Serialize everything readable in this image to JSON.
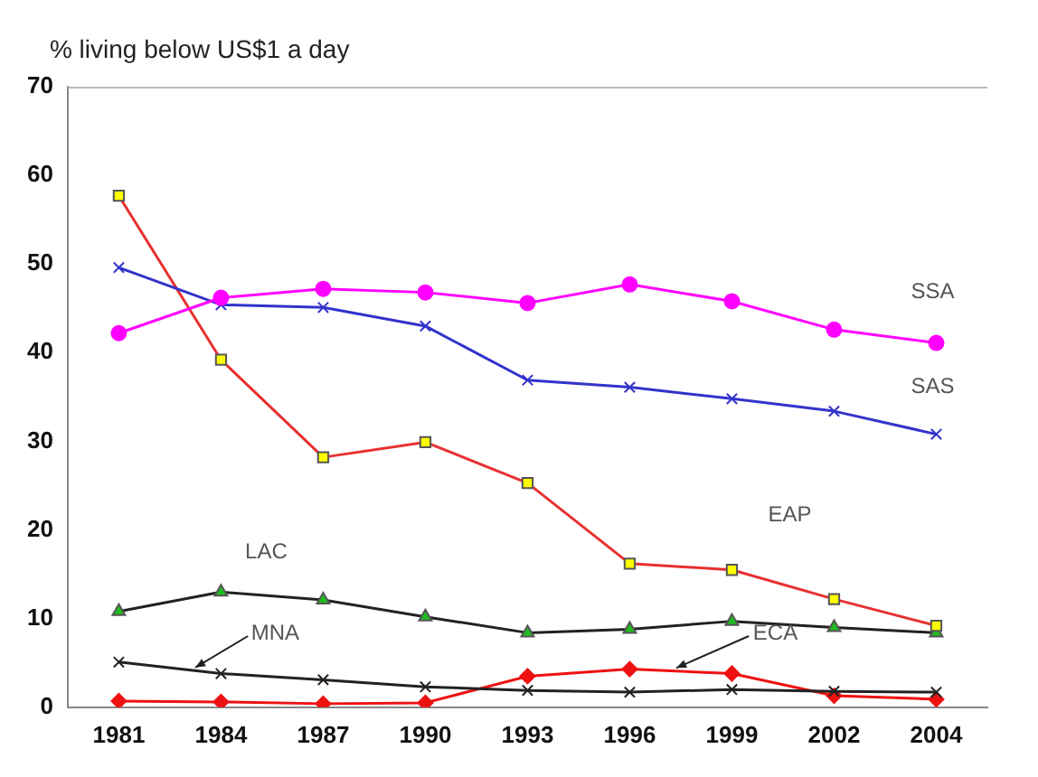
{
  "chart_data": {
    "type": "line",
    "ylabel": "% living below US$1 a day",
    "categories": [
      "1981",
      "1984",
      "1987",
      "1990",
      "1993",
      "1996",
      "1999",
      "2002",
      "2004"
    ],
    "ylim": [
      0,
      70
    ],
    "yticks": [
      0,
      10,
      20,
      30,
      40,
      50,
      60,
      70
    ],
    "grid": false,
    "legend": false,
    "series": [
      {
        "name": "SSA",
        "color": "#ff00ff",
        "marker": "circle",
        "values": [
          42.2,
          46.2,
          47.2,
          46.8,
          45.6,
          47.7,
          45.8,
          42.6,
          41.1
        ]
      },
      {
        "name": "SAS",
        "color": "#3333cc",
        "marker": "cross",
        "values": [
          49.6,
          45.4,
          45.1,
          43.0,
          36.9,
          36.1,
          34.8,
          33.4,
          30.8
        ]
      },
      {
        "name": "EAP",
        "color": "#e83030",
        "marker": "square",
        "values": [
          57.7,
          39.2,
          28.2,
          29.9,
          25.3,
          16.2,
          15.5,
          12.2,
          9.2
        ]
      },
      {
        "name": "LAC",
        "color": "#222222",
        "marker": "triangle",
        "values": [
          10.8,
          13.0,
          12.1,
          10.2,
          8.4,
          8.8,
          9.7,
          9.0,
          8.4
        ]
      },
      {
        "name": "MNA",
        "color": "#222222",
        "marker": "cross",
        "values": [
          5.1,
          3.8,
          3.1,
          2.3,
          1.9,
          1.7,
          2.0,
          1.8,
          1.7
        ]
      },
      {
        "name": "ECA",
        "color": "#ee1111",
        "marker": "diamond",
        "values": [
          0.7,
          0.6,
          0.4,
          0.5,
          3.5,
          4.3,
          3.8,
          1.3,
          0.9
        ]
      }
    ]
  }
}
